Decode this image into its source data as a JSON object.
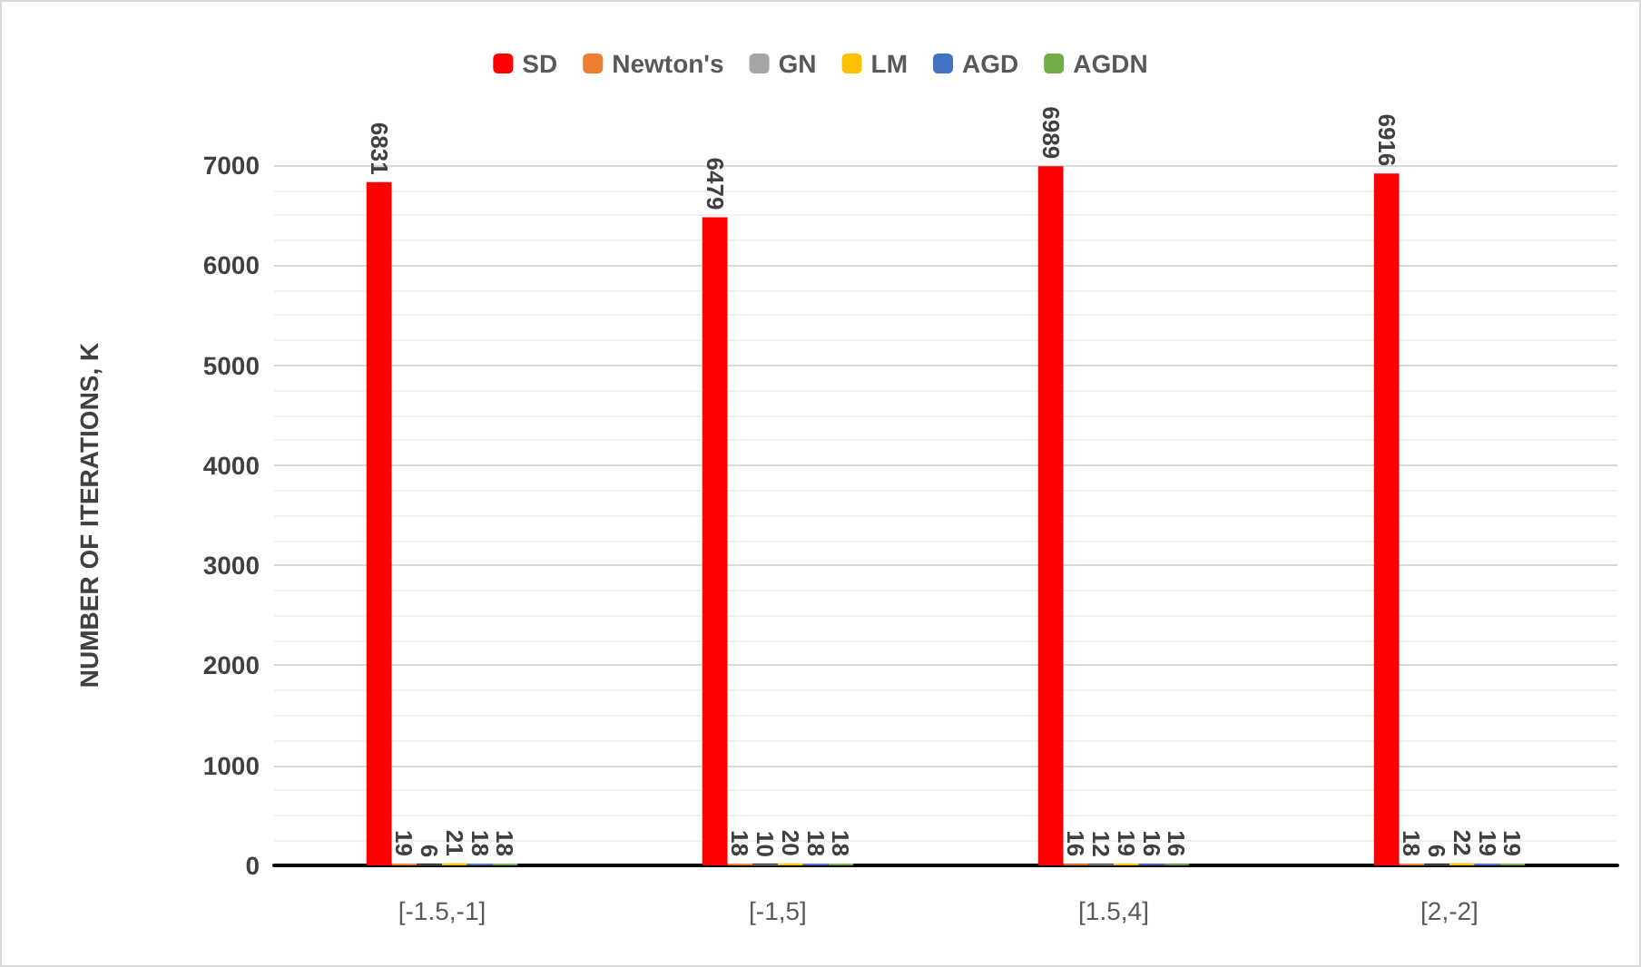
{
  "chart_data": {
    "type": "bar",
    "ylabel": "NUMBER OF ITERATIONS, K",
    "categories": [
      "[-1.5,-1]",
      "[-1,5]",
      "[1.5,4]",
      "[2,-2]"
    ],
    "series": [
      {
        "name": "SD",
        "color": "#ff0000",
        "values": [
          6831,
          6479,
          6989,
          6916
        ]
      },
      {
        "name": "Newton's",
        "color": "#ed7d31",
        "values": [
          19,
          18,
          16,
          18
        ]
      },
      {
        "name": "GN",
        "color": "#a5a5a5",
        "values": [
          6,
          10,
          12,
          6
        ]
      },
      {
        "name": "LM",
        "color": "#ffc000",
        "values": [
          21,
          20,
          19,
          22
        ]
      },
      {
        "name": "AGD",
        "color": "#4472c4",
        "values": [
          18,
          18,
          16,
          19
        ]
      },
      {
        "name": "AGDN",
        "color": "#70ad47",
        "values": [
          18,
          18,
          16,
          19
        ]
      }
    ],
    "ylim": [
      0,
      7000
    ],
    "yticks": [
      0,
      1000,
      2000,
      3000,
      4000,
      5000,
      6000,
      7000
    ],
    "grid": "y",
    "legend": "top",
    "data_labels": true
  }
}
